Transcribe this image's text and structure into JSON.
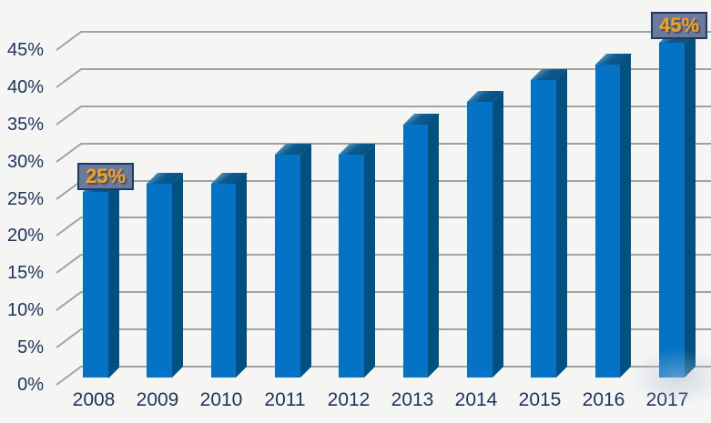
{
  "chart_data": {
    "type": "bar",
    "style": "3d-column",
    "title": "",
    "xlabel": "",
    "ylabel": "",
    "categories": [
      "2008",
      "2009",
      "2010",
      "2011",
      "2012",
      "2013",
      "2014",
      "2015",
      "2016",
      "2017"
    ],
    "values": [
      25,
      26,
      26,
      30,
      30,
      34,
      37,
      40,
      42,
      45
    ],
    "ylim": [
      0,
      45
    ],
    "ytick_step": 5,
    "ytick_labels": [
      "0%",
      "5%",
      "10%",
      "15%",
      "20%",
      "25%",
      "30%",
      "35%",
      "40%",
      "45%"
    ],
    "grid": true,
    "legend": false,
    "annotations": [
      {
        "category": "2008",
        "label": "25%"
      },
      {
        "category": "2017",
        "label": "45%"
      }
    ]
  },
  "colors": {
    "background": "#f5f5f4",
    "gridline": "#a2a2a2",
    "bar_front": "#0473c6",
    "bar_side": "#00517f",
    "bar_top_light": "#4a8fba",
    "bar_top_mid": "#0d5c92",
    "bar_top_dark": "#084f7f",
    "axis_label": "#1c3461",
    "callout_fill": "#697a9d",
    "callout_border": "#1f3864",
    "callout_text": "#f7a11d"
  }
}
